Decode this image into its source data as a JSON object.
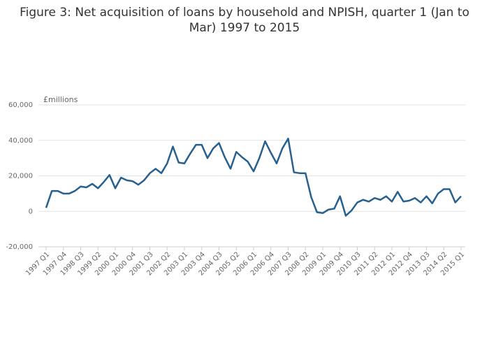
{
  "chart_data": {
    "type": "line",
    "title": "Figure 3: Net acquisition of loans by household and NPISH, quarter 1 (Jan to Mar) 1997 to 2015",
    "y_label": "£millions",
    "categories": [
      "1997 Q1",
      null,
      null,
      "1997 Q4",
      null,
      null,
      "1998 Q3",
      null,
      null,
      "1999 Q2",
      null,
      null,
      "2000 Q1",
      null,
      null,
      "2000 Q4",
      null,
      null,
      "2001 Q3",
      null,
      null,
      "2002 Q2",
      null,
      null,
      "2003 Q1",
      null,
      null,
      "2003 Q4",
      null,
      null,
      "2004 Q3",
      null,
      null,
      "2005 Q2",
      null,
      null,
      "2006 Q1",
      null,
      null,
      "2006 Q4",
      null,
      null,
      "2007 Q3",
      null,
      null,
      "2008 Q2",
      null,
      null,
      "2009 Q1",
      null,
      null,
      "2009 Q4",
      null,
      null,
      "2010 Q3",
      null,
      null,
      "2011 Q2",
      null,
      null,
      "2012 Q1",
      null,
      null,
      "2012 Q4",
      null,
      null,
      "2013 Q3",
      null,
      null,
      "2014 Q2",
      null,
      null,
      "2015 Q1"
    ],
    "values": [
      2000,
      11500,
      11500,
      10000,
      10000,
      11500,
      14000,
      13500,
      15500,
      13000,
      16500,
      20500,
      13000,
      19000,
      17500,
      17000,
      15000,
      17500,
      21500,
      24000,
      21500,
      27000,
      36500,
      27500,
      27000,
      32500,
      37500,
      37500,
      30000,
      35500,
      38500,
      30500,
      24000,
      33500,
      30500,
      28000,
      22500,
      30000,
      39500,
      33000,
      27000,
      35500,
      41000,
      22000,
      21500,
      21500,
      8000,
      -500,
      -1000,
      1000,
      1500,
      8500,
      -2500,
      500,
      5000,
      6500,
      5500,
      7500,
      6500,
      8500,
      5500,
      11000,
      5500,
      6000,
      7500,
      5000,
      8500,
      4500,
      10000,
      12500,
      12500,
      5000,
      8500
    ],
    "color": "#27608f",
    "ylim": [
      -20000,
      60000
    ],
    "yticks": [
      {
        "value": -20000,
        "label": "-20,000"
      },
      0,
      {
        "value": 20000,
        "label": "20,000"
      },
      {
        "value": 40000,
        "label": "40,000"
      },
      {
        "value": 60000,
        "label": "60,000"
      }
    ],
    "grid": true
  }
}
